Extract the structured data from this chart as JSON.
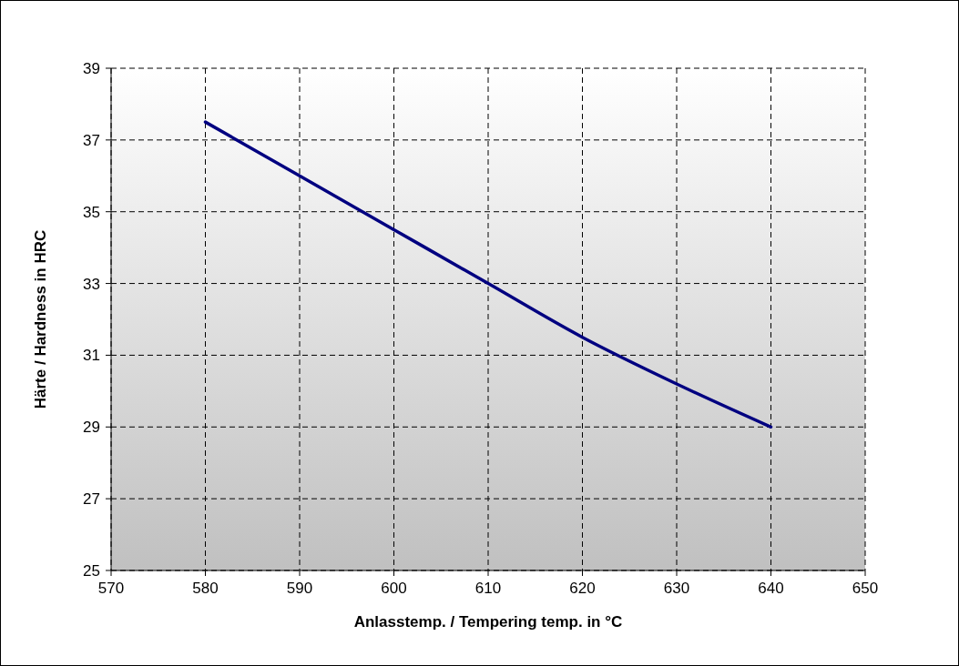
{
  "chart_data": {
    "type": "line",
    "xlabel": "Anlasstemp. / Tempering temp. in °C",
    "ylabel": "Härte / Hardness in HRC",
    "x": [
      580,
      590,
      600,
      610,
      620,
      630,
      640
    ],
    "series": [
      {
        "color": "#000080",
        "values": [
          37.5,
          36,
          34.5,
          33,
          31.5,
          30.2,
          29
        ]
      }
    ],
    "xlim": [
      570,
      650
    ],
    "xticks": [
      570,
      580,
      590,
      600,
      610,
      620,
      630,
      640,
      650
    ],
    "ylim": [
      25,
      39
    ],
    "yticks": [
      25,
      27,
      29,
      31,
      33,
      35,
      37,
      39
    ],
    "grid": true,
    "marker": "none",
    "line_style": "solid"
  }
}
